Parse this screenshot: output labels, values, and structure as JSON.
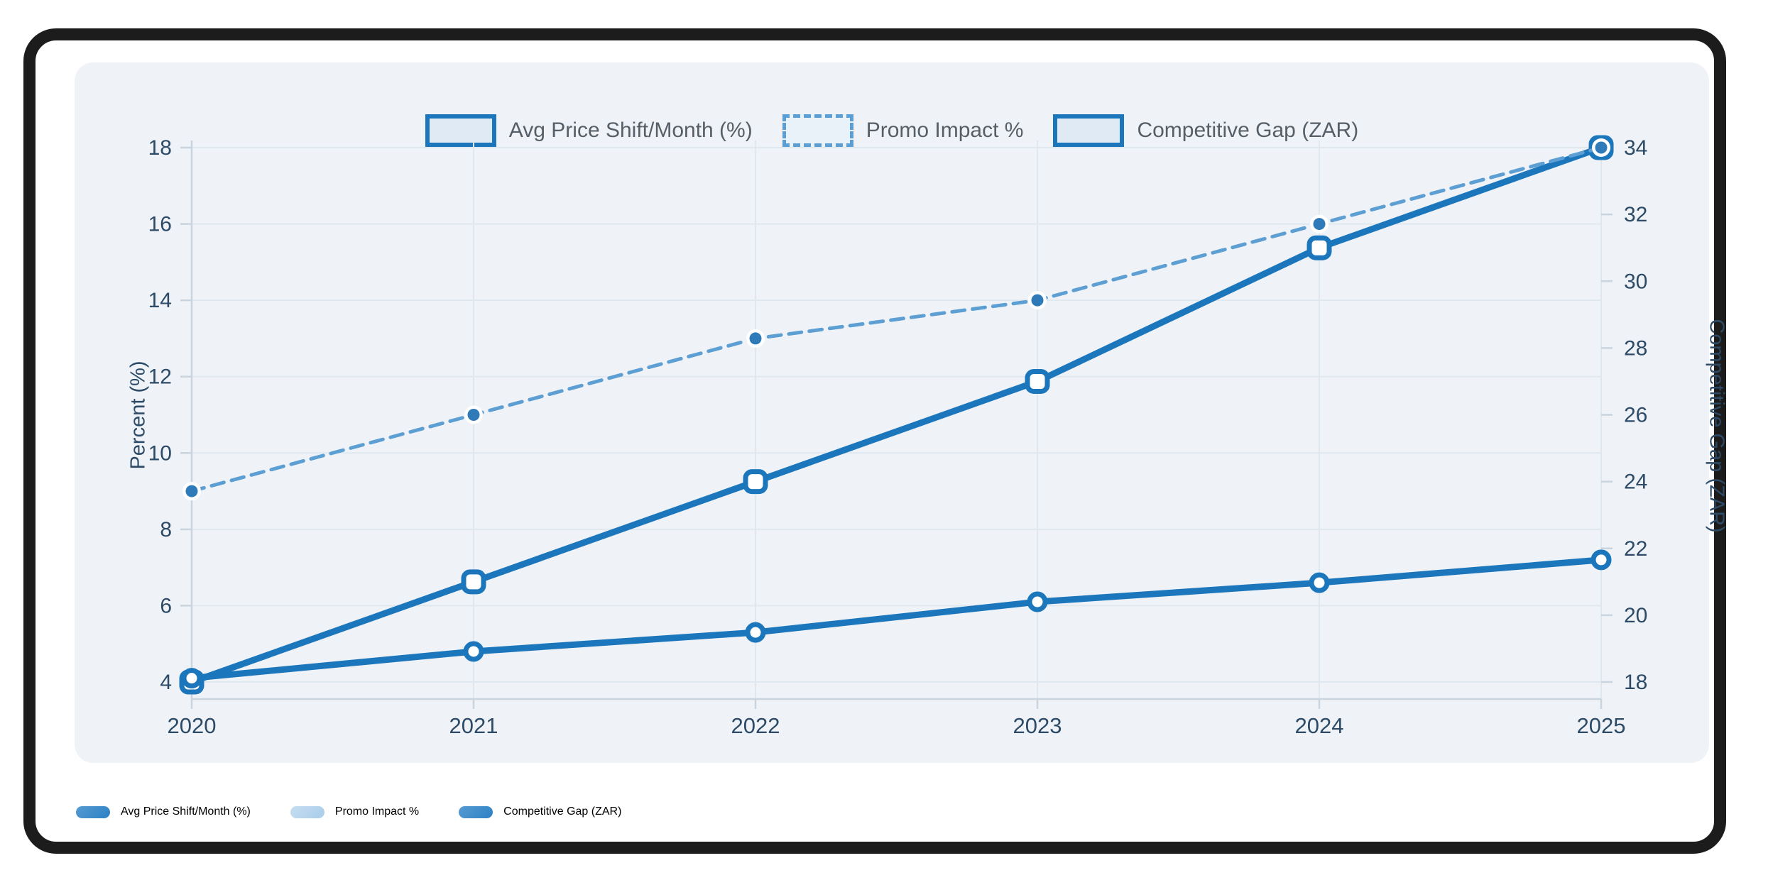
{
  "chart_data": {
    "type": "line",
    "x": [
      2020,
      2021,
      2022,
      2023,
      2024,
      2025
    ],
    "series": [
      {
        "name": "Avg Price Shift/Month (%)",
        "axis": "left",
        "line_style": "solid",
        "marker": "circle",
        "color": "#1c76bc",
        "values": [
          4.1,
          4.8,
          5.3,
          6.1,
          6.6,
          7.2
        ]
      },
      {
        "name": "Promo Impact %",
        "axis": "left",
        "line_style": "dashed",
        "marker": "dot",
        "color": "#5d9fd3",
        "dot_color": "#2f7ab9",
        "values": [
          9,
          11,
          13,
          14,
          16,
          18
        ]
      },
      {
        "name": "Competitive Gap (ZAR)",
        "axis": "right",
        "line_style": "solid",
        "marker": "rounded-square",
        "color": "#1c76bc",
        "values": [
          18,
          21,
          24,
          27,
          31,
          34
        ]
      }
    ],
    "title": "",
    "xlabel": "",
    "ylabel_left": "Percent (%)",
    "ylabel_right": "Competitive Gap (ZAR)",
    "xtick_labels": [
      "2020",
      "2021",
      "2022",
      "2023",
      "2024",
      "2025"
    ],
    "yticks_left": [
      4,
      6,
      8,
      10,
      12,
      14,
      16,
      18
    ],
    "yticks_right": [
      18,
      20,
      22,
      24,
      26,
      28,
      30,
      32,
      34
    ],
    "ylim_left": [
      4,
      18
    ],
    "ylim_right": [
      18,
      34
    ],
    "grid": true,
    "legend_top_position": "top-center",
    "legend_bottom_position": "bottom-left"
  },
  "legend_top": {
    "item1": "Avg Price Shift/Month (%)",
    "item2": "Promo Impact %",
    "item3": "Competitive Gap (ZAR)"
  },
  "legend_bottom": {
    "item1": "Avg Price Shift/Month (%)",
    "item2": "Promo Impact %",
    "item3": "Competitive Gap (ZAR)"
  },
  "axes": {
    "left_title": "Percent (%)",
    "right_title": "Competitive Gap (ZAR)"
  },
  "colors": {
    "primary_blue": "#1c76bc",
    "light_blue_dashed": "#5d9fd3",
    "promo_dot": "#2f7ab9",
    "card_background": "#eff3f8",
    "gridline": "#e0e8ef",
    "axis_line": "#c9d4de",
    "tick_text": "#2d4b66",
    "top_legend_text": "#565f68",
    "bottom_legend_text": "#1d3c59",
    "frame_black": "#1c1c1c",
    "bottom_swatch_1": "#2e81c4",
    "bottom_swatch_2": "#a9cde9",
    "bottom_swatch_3": "#2e81c4"
  }
}
